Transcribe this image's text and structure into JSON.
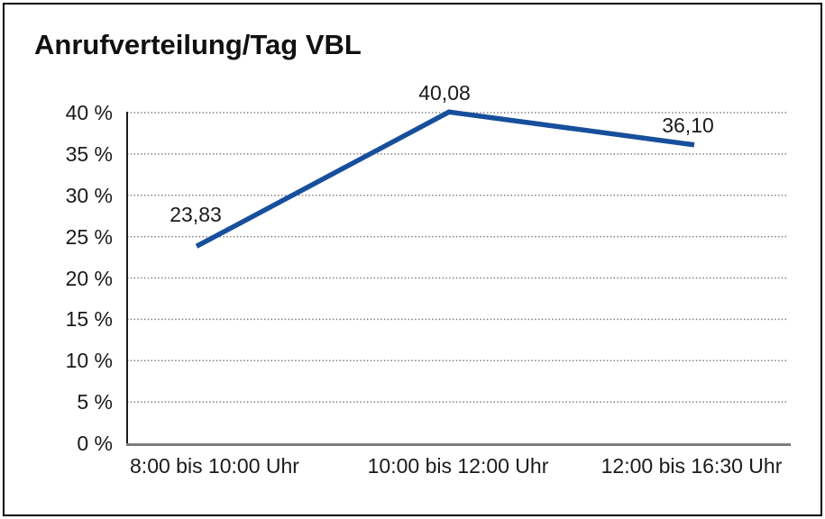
{
  "chart_data": {
    "type": "line",
    "title": "Anrufverteilung/Tag VBL",
    "categories": [
      "8:00 bis 10:00 Uhr",
      "10:00 bis 12:00 Uhr",
      "12:00 bis 16:30 Uhr"
    ],
    "values": [
      23.83,
      40.08,
      36.1
    ],
    "data_labels": [
      "23,83",
      "40,08",
      "36,10"
    ],
    "xlabel": "",
    "ylabel": "",
    "y_axis": {
      "min": 0,
      "max": 40,
      "step": 5,
      "unit": "%",
      "tick_labels": [
        "0 %",
        "5 %",
        "10 %",
        "15 %",
        "20 %",
        "25 %",
        "30 %",
        "35 %",
        "40 %"
      ]
    },
    "grid": {
      "horizontal_dotted": true,
      "vertical": false
    },
    "legend": "none",
    "colors": {
      "line": "#174f9c",
      "grid": "#7a7a7a",
      "y_axis_line": "#1c1c1c",
      "baseline": "#7d7d7d",
      "text": "#1a1a1a",
      "background": "#ffffff",
      "frame_border": "#000000"
    }
  }
}
